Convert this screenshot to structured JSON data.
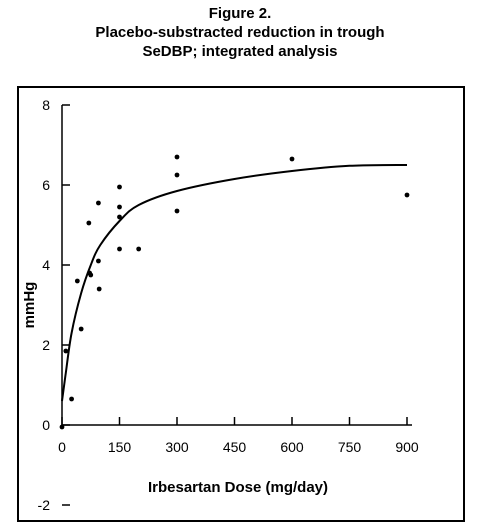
{
  "chart_data": {
    "type": "scatter",
    "title": "Figure 2.",
    "subtitle_lines": [
      "Placebo-substracted reduction in trough",
      "SeDBP; integrated analysis"
    ],
    "xlabel": "Irbesartan Dose (mg/day)",
    "ylabel": "mmHg",
    "xlim": [
      0,
      930
    ],
    "ylim": [
      -2,
      8
    ],
    "x_ticks": [
      0,
      150,
      300,
      450,
      600,
      750,
      900
    ],
    "y_ticks": [
      -2,
      0,
      2,
      4,
      6,
      8
    ],
    "grid": false,
    "legend": "none",
    "series": [
      {
        "type": "scatter",
        "points": [
          {
            "x": 0,
            "y": -0.05
          },
          {
            "x": 10,
            "y": 1.85
          },
          {
            "x": 25,
            "y": 0.65
          },
          {
            "x": 40,
            "y": 3.6
          },
          {
            "x": 50,
            "y": 2.4
          },
          {
            "x": 70,
            "y": 5.05
          },
          {
            "x": 72,
            "y": 3.8
          },
          {
            "x": 75,
            "y": 3.75
          },
          {
            "x": 95,
            "y": 5.55
          },
          {
            "x": 95,
            "y": 4.1
          },
          {
            "x": 97,
            "y": 3.4
          },
          {
            "x": 150,
            "y": 5.95
          },
          {
            "x": 150,
            "y": 5.45
          },
          {
            "x": 150,
            "y": 5.2
          },
          {
            "x": 150,
            "y": 4.4
          },
          {
            "x": 200,
            "y": 4.4
          },
          {
            "x": 300,
            "y": 6.7
          },
          {
            "x": 300,
            "y": 6.25
          },
          {
            "x": 300,
            "y": 5.35
          },
          {
            "x": 600,
            "y": 6.65
          },
          {
            "x": 900,
            "y": 5.75
          }
        ]
      },
      {
        "type": "line",
        "points": [
          {
            "x": 0,
            "y": 0.6
          },
          {
            "x": 10,
            "y": 1.3
          },
          {
            "x": 25,
            "y": 2.3
          },
          {
            "x": 50,
            "y": 3.3
          },
          {
            "x": 75,
            "y": 4.0
          },
          {
            "x": 100,
            "y": 4.5
          },
          {
            "x": 150,
            "y": 5.1
          },
          {
            "x": 200,
            "y": 5.5
          },
          {
            "x": 300,
            "y": 5.85
          },
          {
            "x": 450,
            "y": 6.15
          },
          {
            "x": 600,
            "y": 6.35
          },
          {
            "x": 750,
            "y": 6.48
          },
          {
            "x": 900,
            "y": 6.5
          }
        ]
      }
    ]
  }
}
